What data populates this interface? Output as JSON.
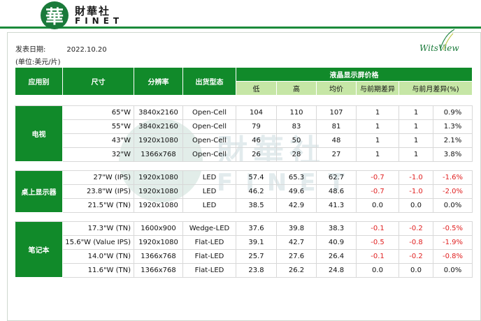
{
  "header": {
    "logo_char": "華",
    "brand_cn": "財華社",
    "brand_en": "FINET",
    "partner_logo": "WitsView"
  },
  "meta": {
    "date_label": "发表日期:",
    "date": "2022.10.20",
    "unit": "(单位:美元/片)"
  },
  "table": {
    "headers": {
      "application": "应用别",
      "size": "尺寸",
      "resolution": "分辨率",
      "form": "出货型态",
      "price_group": "液晶显示屏价格",
      "low": "低",
      "high": "高",
      "avg": "均价",
      "diff_prev": "与前期差异",
      "diff_month": "与前月差异(%)"
    },
    "groups": [
      {
        "category": "电视",
        "rows": [
          {
            "size": "65\"W",
            "res": "3840x2160",
            "form": "Open-Cell",
            "low": "104",
            "high": "110",
            "avg": "107",
            "dp": "1",
            "dm": "1",
            "pct": "0.9%"
          },
          {
            "size": "55\"W",
            "res": "3840x2160",
            "form": "Open-Cell",
            "low": "79",
            "high": "83",
            "avg": "81",
            "dp": "1",
            "dm": "1",
            "pct": "1.3%"
          },
          {
            "size": "43\"W",
            "res": "1920x1080",
            "form": "Open-Cell",
            "low": "46",
            "high": "50",
            "avg": "48",
            "dp": "1",
            "dm": "1",
            "pct": "2.1%"
          },
          {
            "size": "32\"W",
            "res": "1366x768",
            "form": "Open-Cell",
            "low": "26",
            "high": "28",
            "avg": "27",
            "dp": "1",
            "dm": "1",
            "pct": "3.8%"
          }
        ]
      },
      {
        "category": "桌上显示器",
        "rows": [
          {
            "size": "27\"W (IPS)",
            "res": "1920x1080",
            "form": "LED",
            "low": "57.4",
            "high": "65.3",
            "avg": "62.7",
            "dp": "-0.7",
            "dm": "-1.0",
            "pct": "-1.6%"
          },
          {
            "size": "23.8\"W (IPS)",
            "res": "1920x1080",
            "form": "LED",
            "low": "46.2",
            "high": "49.6",
            "avg": "48.6",
            "dp": "-0.7",
            "dm": "-1.0",
            "pct": "-2.0%"
          },
          {
            "size": "21.5\"W (TN)",
            "res": "1920x1080",
            "form": "LED",
            "low": "38.5",
            "high": "42.9",
            "avg": "41.3",
            "dp": "0.0",
            "dm": "0.0",
            "pct": "0.0%"
          }
        ]
      },
      {
        "category": "笔记本",
        "rows": [
          {
            "size": "17.3\"W (TN)",
            "res": "1600x900",
            "form": "Wedge-LED",
            "low": "37.6",
            "high": "39.8",
            "avg": "38.3",
            "dp": "-0.1",
            "dm": "-0.2",
            "pct": "-0.5%"
          },
          {
            "size": "15.6\"W (Value IPS)",
            "res": "1920x1080",
            "form": "Flat-LED",
            "low": "39.1",
            "high": "42.7",
            "avg": "40.9",
            "dp": "-0.5",
            "dm": "-0.8",
            "pct": "-1.9%"
          },
          {
            "size": "14.0\"W (TN)",
            "res": "1366x768",
            "form": "Flat-LED",
            "low": "25.7",
            "high": "27.6",
            "avg": "26.4",
            "dp": "-0.1",
            "dm": "-0.2",
            "pct": "-0.8%"
          },
          {
            "size": "11.6\"W (TN)",
            "res": "1366x768",
            "form": "Flat-LED",
            "low": "23.8",
            "high": "26.2",
            "avg": "24.8",
            "dp": "0.0",
            "dm": "0.0",
            "pct": "0.0%"
          }
        ]
      }
    ]
  },
  "colors": {
    "header_green": "#118a2a",
    "subheader_green": "#c6e6a6",
    "negative_red": "#e02020"
  }
}
